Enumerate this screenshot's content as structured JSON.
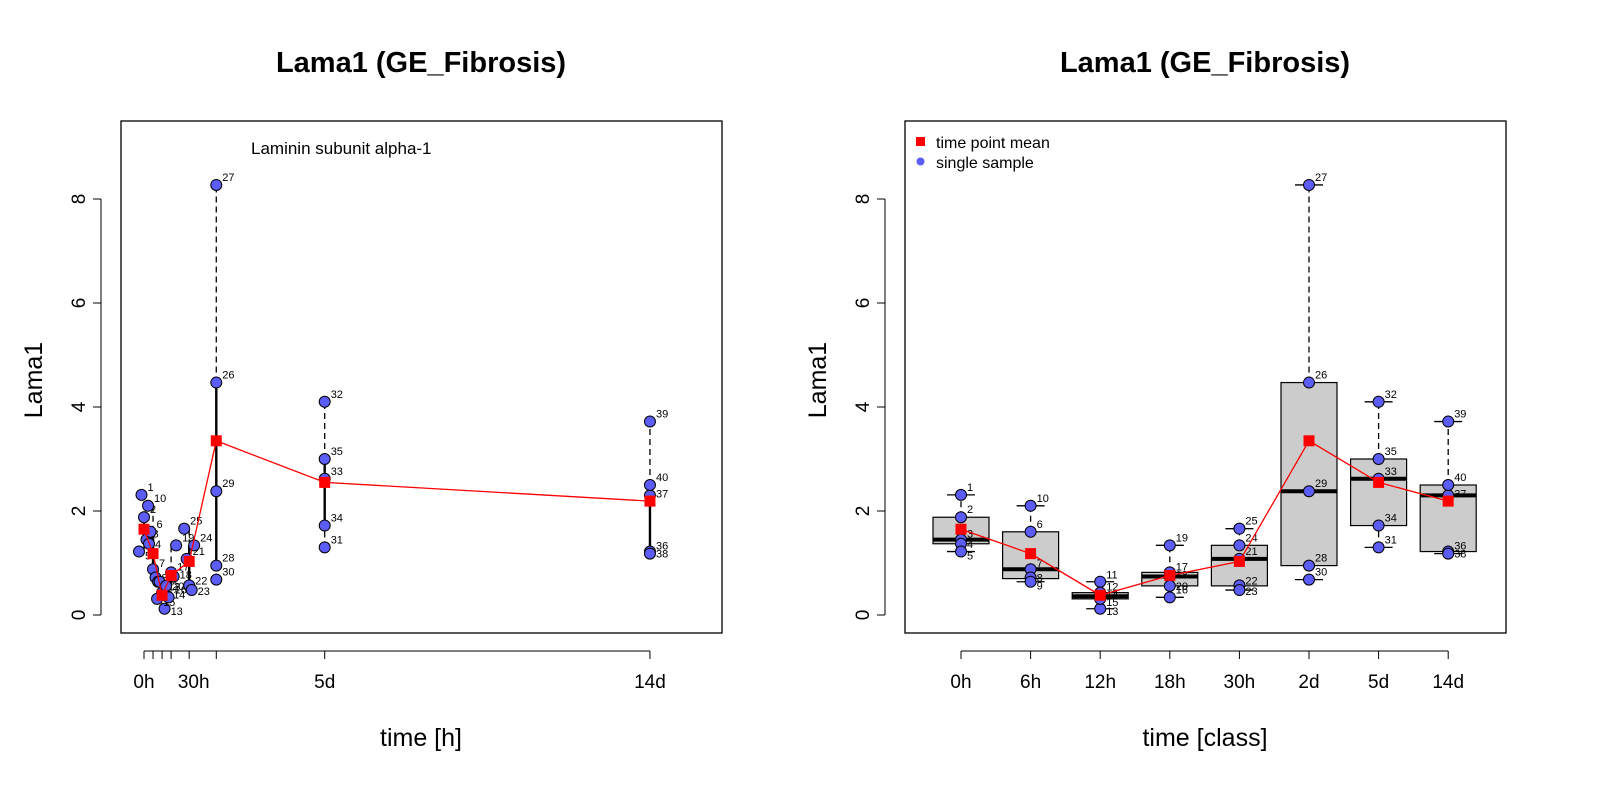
{
  "colors": {
    "point": "#5c5cf7",
    "mean": "#ff0000",
    "box": "#cccccc"
  },
  "chart_data": [
    {
      "type": "scatter",
      "title": "Lama1 (GE_Fibrosis)",
      "xlabel": "time [h]",
      "ylabel": "Lama1",
      "annotation": "Laminin subunit alpha-1",
      "ylim": [
        0,
        9
      ],
      "xlim": [
        0,
        14
      ],
      "grid": false,
      "y_ticks": [
        0,
        2,
        4,
        6,
        8
      ],
      "x_tick_labels": [
        {
          "x": 0,
          "label": "0h"
        },
        {
          "x": 1.375,
          "label": "30h"
        },
        {
          "x": 5,
          "label": "5d"
        },
        {
          "x": 14,
          "label": "14d"
        }
      ],
      "x_minor_ticks": [
        0,
        0.25,
        0.5,
        0.75,
        1.25,
        2
      ],
      "groups": [
        {
          "label": "0h",
          "x": 0,
          "min": 1.22,
          "q1": 1.37,
          "q3": 1.88,
          "max": 2.31,
          "mean": 1.65,
          "samples": [
            {
              "id": "1",
              "x": 0,
              "y": 2.31
            },
            {
              "id": "2",
              "x": 0,
              "y": 1.88
            },
            {
              "id": "3",
              "x": 0,
              "y": 1.45
            },
            {
              "id": "4",
              "x": 0,
              "y": 1.37
            },
            {
              "id": "5",
              "x": 0,
              "y": 1.22
            }
          ]
        },
        {
          "label": "6h",
          "x": 0.25,
          "min": 0.64,
          "q1": 0.7,
          "q3": 1.6,
          "max": 2.1,
          "mean": 1.18,
          "samples": [
            {
              "id": "6",
              "x": 0.25,
              "y": 1.6
            },
            {
              "id": "7",
              "x": 0.25,
              "y": 0.88
            },
            {
              "id": "8",
              "x": 0.25,
              "y": 0.72
            },
            {
              "id": "9",
              "x": 0.25,
              "y": 0.64
            },
            {
              "id": "10",
              "x": 0.25,
              "y": 2.1
            }
          ]
        },
        {
          "label": "12h",
          "x": 0.5,
          "min": 0.12,
          "q1": 0.31,
          "q3": 0.43,
          "max": 0.64,
          "mean": 0.38,
          "samples": [
            {
              "id": "11",
              "x": 0.5,
              "y": 0.64
            },
            {
              "id": "12",
              "x": 0.5,
              "y": 0.43
            },
            {
              "id": "13",
              "x": 0.5,
              "y": 0.12
            },
            {
              "id": "14",
              "x": 0.5,
              "y": 0.36
            },
            {
              "id": "15",
              "x": 0.5,
              "y": 0.31
            }
          ]
        },
        {
          "label": "18h",
          "x": 0.75,
          "min": 0.34,
          "q1": 0.56,
          "q3": 0.82,
          "max": 1.34,
          "mean": 0.76,
          "samples": [
            {
              "id": "16",
              "x": 0.75,
              "y": 0.34
            },
            {
              "id": "17",
              "x": 0.75,
              "y": 0.82
            },
            {
              "id": "18",
              "x": 0.75,
              "y": 0.74
            },
            {
              "id": "19",
              "x": 0.75,
              "y": 1.34
            },
            {
              "id": "20",
              "x": 0.75,
              "y": 0.56
            }
          ]
        },
        {
          "label": "30h",
          "x": 1.25,
          "min": 0.48,
          "q1": 0.56,
          "q3": 1.34,
          "max": 1.66,
          "mean": 1.03,
          "samples": [
            {
              "id": "21",
              "x": 1.25,
              "y": 1.08
            },
            {
              "id": "22",
              "x": 1.25,
              "y": 0.57
            },
            {
              "id": "23",
              "x": 1.25,
              "y": 0.48
            },
            {
              "id": "24",
              "x": 1.25,
              "y": 1.34
            },
            {
              "id": "25",
              "x": 1.25,
              "y": 1.66
            }
          ]
        },
        {
          "label": "2d",
          "x": 2,
          "min": 0.68,
          "q1": 0.95,
          "q3": 4.47,
          "max": 8.27,
          "mean": 3.35,
          "samples": [
            {
              "id": "26",
              "x": 2,
              "y": 4.47
            },
            {
              "id": "27",
              "x": 2,
              "y": 8.27
            },
            {
              "id": "28",
              "x": 2,
              "y": 0.95
            },
            {
              "id": "29",
              "x": 2,
              "y": 2.38
            },
            {
              "id": "30",
              "x": 2,
              "y": 0.68
            }
          ]
        },
        {
          "label": "5d",
          "x": 5,
          "min": 1.3,
          "q1": 1.72,
          "q3": 3.0,
          "max": 4.1,
          "mean": 2.55,
          "samples": [
            {
              "id": "31",
              "x": 5,
              "y": 1.3
            },
            {
              "id": "32",
              "x": 5,
              "y": 4.1
            },
            {
              "id": "33",
              "x": 5,
              "y": 2.62
            },
            {
              "id": "34",
              "x": 5,
              "y": 1.72
            },
            {
              "id": "35",
              "x": 5,
              "y": 3.0
            }
          ]
        },
        {
          "label": "14d",
          "x": 14,
          "min": 1.18,
          "q1": 1.22,
          "q3": 2.5,
          "max": 3.72,
          "mean": 2.19,
          "samples": [
            {
              "id": "36",
              "x": 14,
              "y": 1.22
            },
            {
              "id": "37",
              "x": 14,
              "y": 2.3
            },
            {
              "id": "38",
              "x": 14,
              "y": 1.18
            },
            {
              "id": "39",
              "x": 14,
              "y": 3.72
            },
            {
              "id": "40",
              "x": 14,
              "y": 2.5
            }
          ]
        }
      ]
    },
    {
      "type": "box",
      "title": "Lama1 (GE_Fibrosis)",
      "xlabel": "time [class]",
      "ylabel": "Lama1",
      "ylim": [
        0,
        9
      ],
      "grid": false,
      "legend": {
        "position": "top-left",
        "entries": [
          "time point mean",
          "single sample"
        ]
      },
      "categories": [
        "0h",
        "6h",
        "12h",
        "18h",
        "30h",
        "2d",
        "5d",
        "14d"
      ],
      "y_ticks": [
        0,
        2,
        4,
        6,
        8
      ],
      "medians": [
        1.45,
        0.88,
        0.36,
        0.74,
        1.08,
        2.38,
        2.62,
        2.3
      ],
      "means": [
        1.65,
        1.18,
        0.38,
        0.76,
        1.03,
        3.35,
        2.55,
        2.19
      ],
      "q1": [
        1.37,
        0.7,
        0.31,
        0.56,
        0.56,
        0.95,
        1.72,
        1.22
      ],
      "q3": [
        1.88,
        1.6,
        0.43,
        0.82,
        1.34,
        4.47,
        3.0,
        2.5
      ],
      "whisker_low": [
        1.22,
        0.64,
        0.12,
        0.34,
        0.48,
        0.68,
        1.3,
        1.18
      ],
      "whisker_high": [
        2.31,
        2.1,
        0.64,
        1.34,
        1.66,
        8.27,
        4.1,
        3.72
      ]
    }
  ]
}
